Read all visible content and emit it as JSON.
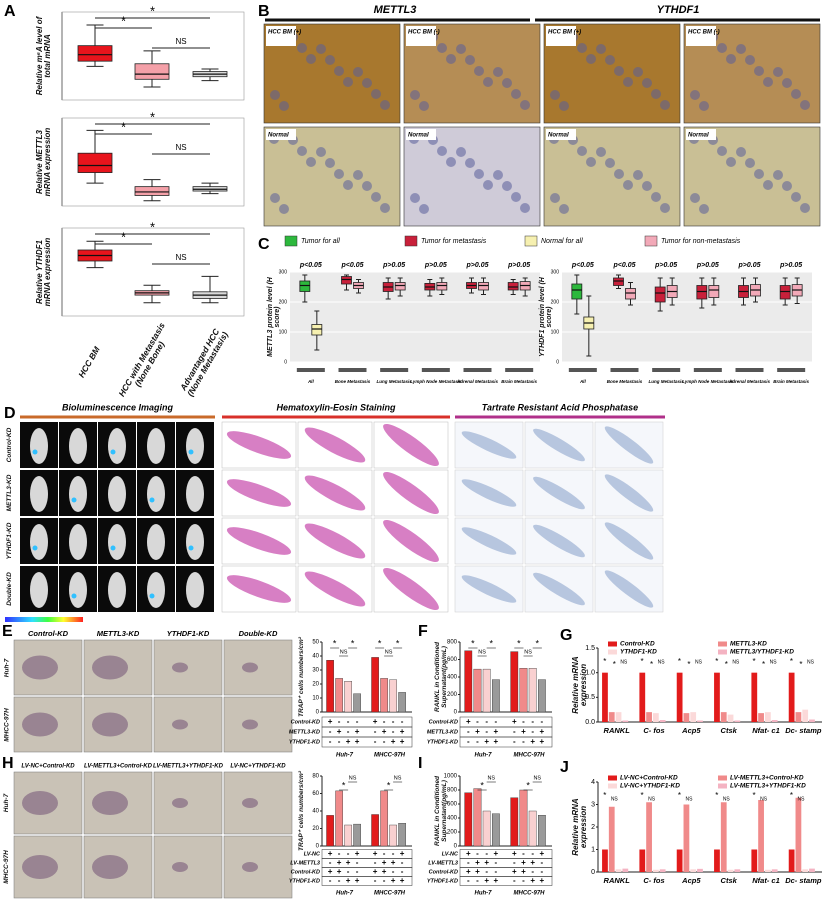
{
  "panels": {
    "a": {
      "letter": "A",
      "categories": [
        "HCC BM",
        "HCC with Metastasis (None Bone)",
        "Advantaged HCC (None Metastasis)"
      ],
      "plots": [
        {
          "ylabel": "Relative m⁶A level of total mRNA",
          "ylim": [
            0,
            3.4
          ],
          "boxes": [
            [
              1.3,
              1.5,
              1.75,
              2.1,
              2.9
            ],
            [
              0.5,
              0.8,
              1.0,
              1.4,
              1.9
            ],
            [
              0.75,
              0.9,
              1.0,
              1.1,
              1.2
            ]
          ],
          "annotations": [
            "*",
            "*",
            "NS"
          ]
        },
        {
          "ylabel": "Relative METTL3 mRNA expression",
          "ylim": [
            0,
            5.0
          ],
          "boxes": [
            [
              1.3,
              1.9,
              2.3,
              3.0,
              4.3
            ],
            [
              0.3,
              0.6,
              0.8,
              1.1,
              1.5
            ],
            [
              0.7,
              0.85,
              0.95,
              1.1,
              1.3
            ]
          ],
          "annotations": [
            "*",
            "*",
            "NS"
          ]
        },
        {
          "ylabel": "Relative YTHDF1 mRNA expression",
          "ylim": [
            0,
            4.0
          ],
          "boxes": [
            [
              2.2,
              2.5,
              2.75,
              3.0,
              3.4
            ],
            [
              0.6,
              0.95,
              1.05,
              1.15,
              1.4
            ],
            [
              0.6,
              0.8,
              0.95,
              1.1,
              1.8
            ]
          ],
          "annotations": [
            "*",
            "*",
            "NS"
          ]
        }
      ]
    },
    "b": {
      "letter": "B",
      "headers": [
        "METTL3",
        "YTHDF1"
      ],
      "tags": [
        [
          "HCC BM (+)",
          "HCC BM (-)",
          "HCC BM (+)",
          "HCC BM (-)"
        ],
        [
          "Normal",
          "Normal",
          "Normal",
          "Normal"
        ]
      ]
    },
    "c": {
      "letter": "C",
      "legend": [
        {
          "name": "Tumor for all",
          "color": "#2db83d"
        },
        {
          "name": "Tumor for metastasis",
          "color": "#c8203a"
        },
        {
          "name": "Normal for all",
          "color": "#f6f0b0"
        },
        {
          "name": "Tumor for non-metastasis",
          "color": "#f2a9b8"
        }
      ],
      "categories": [
        "All",
        "Bone Metastasis",
        "Lung Metastasis",
        "Lymph Node Metastasis",
        "Adrenal Metastasis",
        "Brain Metastasis"
      ],
      "charts": [
        {
          "ylabel": "METTL3 protein level (H score)",
          "ylim": [
            0,
            300
          ],
          "yticks": [
            0,
            100,
            200,
            300
          ],
          "p_values": [
            "p<0.05",
            "p<0.05",
            "p>0.05",
            "p>0.05",
            "p>0.05",
            "p>0.05"
          ],
          "boxes": [
            [
              [
                200,
                235,
                255,
                270,
                290
              ],
              [
                40,
                90,
                110,
                125,
                170
              ]
            ],
            [
              [
                240,
                260,
                275,
                285,
                290
              ],
              [
                230,
                245,
                255,
                265,
                275
              ]
            ],
            [
              [
                210,
                235,
                250,
                265,
                280
              ],
              [
                220,
                240,
                255,
                265,
                280
              ]
            ],
            [
              [
                220,
                240,
                250,
                262,
                275
              ],
              [
                225,
                240,
                255,
                265,
                280
              ]
            ],
            [
              [
                230,
                245,
                255,
                265,
                280
              ],
              [
                225,
                240,
                255,
                265,
                280
              ]
            ],
            [
              [
                225,
                240,
                250,
                265,
                275
              ],
              [
                220,
                240,
                255,
                268,
                280
              ]
            ]
          ]
        },
        {
          "ylabel": "YTHDF1 protein level (H score)",
          "ylim": [
            0,
            300
          ],
          "yticks": [
            0,
            100,
            200,
            300
          ],
          "p_values": [
            "p<0.05",
            "p<0.05",
            "p>0.05",
            "p>0.05",
            "p>0.05",
            "p>0.05"
          ],
          "boxes": [
            [
              [
                160,
                210,
                240,
                260,
                290
              ],
              [
                20,
                110,
                130,
                150,
                220
              ]
            ],
            [
              [
                245,
                255,
                270,
                280,
                290
              ],
              [
                190,
                210,
                230,
                245,
                265
              ]
            ],
            [
              [
                170,
                200,
                230,
                250,
                280
              ],
              [
                190,
                215,
                235,
                255,
                280
              ]
            ],
            [
              [
                180,
                210,
                235,
                255,
                280
              ],
              [
                190,
                215,
                240,
                255,
                280
              ]
            ],
            [
              [
                190,
                215,
                235,
                255,
                280
              ],
              [
                200,
                220,
                240,
                258,
                280
              ]
            ],
            [
              [
                190,
                210,
                235,
                255,
                280
              ],
              [
                195,
                220,
                240,
                258,
                280
              ]
            ]
          ]
        }
      ]
    },
    "d": {
      "letter": "D",
      "headers": [
        "Bioluminescence Imaging",
        "Hematoxylin-Eosin Staining",
        "Tartrate Resistant Acid Phosphatase"
      ],
      "rows": [
        "Control-KD",
        "METTL3-KD",
        "YTHDF1-KD",
        "Double-KD"
      ]
    },
    "e": {
      "letter": "E",
      "columns": [
        "Control-KD",
        "METTL3-KD",
        "YTHDF1-KD",
        "Double-KD"
      ],
      "rows": [
        "Huh-7",
        "MHCC-97H"
      ],
      "chart": {
        "ylabel": "TRAP⁺ cells numbers/cm²",
        "ylim": [
          0,
          50
        ],
        "yticks": [
          0,
          10,
          20,
          30,
          40,
          50
        ],
        "groups": [
          "Huh-7",
          "MHCC-97H"
        ],
        "colors": [
          "#e21b1b",
          "#f08a8a",
          "#f9d0d0",
          "#9a9a9a"
        ],
        "values": [
          [
            37,
            24,
            22,
            13
          ],
          [
            39,
            24,
            23,
            14
          ]
        ],
        "sig": [
          [
            "*",
            "NS",
            "*"
          ],
          [
            "*",
            "NS",
            "*"
          ]
        ],
        "table": [
          {
            "name": "Control-KD",
            "signs": [
              "+",
              "-",
              "-",
              "-",
              "+",
              "-",
              "-",
              "-"
            ]
          },
          {
            "name": "METTL3-KD",
            "signs": [
              "-",
              "+",
              "-",
              "+",
              "-",
              "+",
              "-",
              "+"
            ]
          },
          {
            "name": "YTHDF1-KD",
            "signs": [
              "-",
              "-",
              "+",
              "+",
              "-",
              "-",
              "+",
              "+"
            ]
          }
        ]
      }
    },
    "f": {
      "letter": "F",
      "chart": {
        "ylabel": "RANKL in Conditioned Supernatant(pg/mL)",
        "ylim": [
          0,
          800
        ],
        "yticks": [
          0,
          200,
          400,
          600,
          800
        ],
        "groups": [
          "Huh-7",
          "MHCC-97H"
        ],
        "colors": [
          "#e21b1b",
          "#f08a8a",
          "#f9d0d0",
          "#9a9a9a"
        ],
        "values": [
          [
            700,
            490,
            490,
            370
          ],
          [
            690,
            500,
            500,
            370
          ]
        ],
        "sig": [
          [
            "*",
            "NS",
            "*"
          ],
          [
            "*",
            "NS",
            "*"
          ]
        ],
        "table": [
          {
            "name": "Control-KD",
            "signs": [
              "+",
              "-",
              "-",
              "-",
              "+",
              "-",
              "-",
              "-"
            ]
          },
          {
            "name": "METTL3-KD",
            "signs": [
              "-",
              "+",
              "-",
              "+",
              "-",
              "+",
              "-",
              "+"
            ]
          },
          {
            "name": "YTHDF1-KD",
            "signs": [
              "-",
              "-",
              "+",
              "+",
              "-",
              "-",
              "+",
              "+"
            ]
          }
        ]
      }
    },
    "g": {
      "letter": "G",
      "chart": {
        "ylabel": "Relative mRNA expression",
        "ylim": [
          0,
          1.5
        ],
        "yticks": [
          {
            "value": 0,
            "label": "0.0"
          },
          {
            "value": 0.5,
            "label": "0.5"
          },
          {
            "value": 1,
            "label": "1.0"
          },
          {
            "value": 1.5,
            "label": "1.5"
          }
        ],
        "categories": [
          "RANKL",
          "C- fos",
          "Acp5",
          "Ctsk",
          "Nfat- c1",
          "Dc- stamp"
        ],
        "series": [
          {
            "name": "Control-KD",
            "color": "#e21b1b",
            "values": [
              1,
              1,
              1,
              1,
              1,
              1
            ]
          },
          {
            "name": "METTL3-KD",
            "color": "#f08a8a",
            "values": [
              0.2,
              0.2,
              0.18,
              0.2,
              0.18,
              0.2
            ]
          },
          {
            "name": "YTHDF1-KD",
            "color": "#fbd9d9",
            "values": [
              0.2,
              0.18,
              0.2,
              0.15,
              0.2,
              0.25
            ]
          },
          {
            "name": "METTL3/YTHDF1-KD",
            "color": "#f4b3c2",
            "values": [
              0.03,
              0.04,
              0.03,
              0.03,
              0.04,
              0.05
            ]
          }
        ],
        "sig": [
          [
            "*",
            "*",
            "NS"
          ],
          [
            "*",
            "*",
            "NS"
          ],
          [
            "*",
            "*",
            "NS"
          ],
          [
            "*",
            "*",
            "NS"
          ],
          [
            "*",
            "*",
            "NS"
          ],
          [
            "*",
            "*",
            "NS"
          ]
        ]
      }
    },
    "h": {
      "letter": "H",
      "columns": [
        "LV-NC+Control-KD",
        "LV-METTL3+Control-KD",
        "LV-METTL3+YTHDF1-KD",
        "LV-NC+YTHDF1-KD"
      ],
      "rows": [
        "Huh-7",
        "MHCC-97H"
      ],
      "chart": {
        "ylabel": "TRAP⁺ cells numbers/cm²",
        "ylim": [
          0,
          80
        ],
        "yticks": [
          0,
          20,
          40,
          60,
          80
        ],
        "groups": [
          "Huh-7",
          "MHCC-97H"
        ],
        "colors": [
          "#e21b1b",
          "#f08a8a",
          "#f9d0d0",
          "#9a9a9a"
        ],
        "values": [
          [
            35,
            63,
            24,
            25
          ],
          [
            36,
            63,
            24,
            26
          ]
        ],
        "sig": [
          [
            "",
            "*",
            "NS"
          ],
          [
            "",
            "*",
            "NS"
          ]
        ],
        "table": [
          {
            "name": "LV-NC",
            "signs": [
              "+",
              "-",
              "-",
              "+",
              "+",
              "-",
              "-",
              "+"
            ]
          },
          {
            "name": "LV-METTL3",
            "signs": [
              "-",
              "+",
              "+",
              "-",
              "-",
              "+",
              "+",
              "-"
            ]
          },
          {
            "name": "Control-KD",
            "signs": [
              "+",
              "+",
              "-",
              "-",
              "+",
              "+",
              "-",
              "-"
            ]
          },
          {
            "name": "YTHDF1-KD",
            "signs": [
              "-",
              "-",
              "+",
              "+",
              "-",
              "-",
              "+",
              "+"
            ]
          }
        ]
      }
    },
    "i": {
      "letter": "I",
      "chart": {
        "ylabel": "RANKL in Conditioned Supernatant(pg/mL)",
        "ylim": [
          0,
          1000
        ],
        "yticks": [
          0,
          200,
          400,
          600,
          800,
          1000
        ],
        "groups": [
          "Huh-7",
          "MHCC-97H"
        ],
        "colors": [
          "#e21b1b",
          "#f08a8a",
          "#f9d0d0",
          "#9a9a9a"
        ],
        "values": [
          [
            760,
            820,
            500,
            460
          ],
          [
            690,
            800,
            500,
            440
          ]
        ],
        "sig": [
          [
            "",
            "*",
            "NS"
          ],
          [
            "",
            "*",
            "NS"
          ]
        ],
        "table": [
          {
            "name": "LV-NC",
            "signs": [
              "+",
              "-",
              "-",
              "+",
              "+",
              "-",
              "-",
              "+"
            ]
          },
          {
            "name": "LV-METTL3",
            "signs": [
              "-",
              "+",
              "+",
              "-",
              "-",
              "+",
              "+",
              "-"
            ]
          },
          {
            "name": "Control-KD",
            "signs": [
              "+",
              "+",
              "-",
              "-",
              "+",
              "+",
              "-",
              "-"
            ]
          },
          {
            "name": "YTHDF1-KD",
            "signs": [
              "-",
              "-",
              "+",
              "+",
              "-",
              "-",
              "+",
              "+"
            ]
          }
        ]
      }
    },
    "j": {
      "letter": "J",
      "chart": {
        "ylabel": "Relative mRNA expression",
        "ylim": [
          0,
          4
        ],
        "yticks": [
          0,
          1,
          2,
          3,
          4
        ],
        "categories": [
          "RANKL",
          "C- fos",
          "Acp5",
          "Ctsk",
          "Nfat- c1",
          "Dc- stamp"
        ],
        "series": [
          {
            "name": "LV-NC+Control-KD",
            "color": "#e21b1b",
            "values": [
              1,
              1,
              1,
              1,
              1,
              1
            ]
          },
          {
            "name": "LV-METTL3+Control-KD",
            "color": "#f08a8a",
            "values": [
              2.9,
              3.1,
              3.0,
              3.1,
              3.2,
              3.3
            ]
          },
          {
            "name": "LV-NC+YTHDF1-KD",
            "color": "#fbd9d9",
            "values": [
              0.12,
              0.1,
              0.12,
              0.1,
              0.1,
              0.12
            ]
          },
          {
            "name": "LV-METTL3+YTHDF1-KD",
            "color": "#f4b3c2",
            "values": [
              0.15,
              0.12,
              0.14,
              0.12,
              0.12,
              0.15
            ]
          }
        ],
        "sig": [
          [
            "*",
            "NS"
          ],
          [
            "*",
            "NS"
          ],
          [
            "*",
            "NS"
          ],
          [
            "*",
            "NS"
          ],
          [
            "*",
            "NS"
          ],
          [
            "*",
            "NS"
          ]
        ]
      }
    }
  }
}
